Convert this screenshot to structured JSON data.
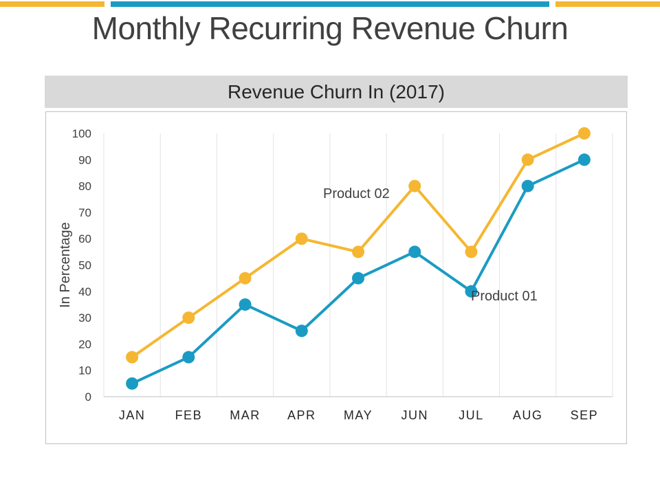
{
  "slide": {
    "title": "Monthly Recurring Revenue Churn",
    "accent_colors": {
      "yellow": "#f5b731",
      "blue": "#1a9bc4"
    }
  },
  "chart_data": {
    "type": "line",
    "title": "Revenue Churn In (2017)",
    "xlabel": "",
    "ylabel": "In Percentage",
    "categories": [
      "JAN",
      "FEB",
      "MAR",
      "APR",
      "MAY",
      "JUN",
      "JUL",
      "AUG",
      "SEP"
    ],
    "ylim": [
      0,
      100
    ],
    "yticks": [
      0,
      10,
      20,
      30,
      40,
      50,
      60,
      70,
      80,
      90,
      100
    ],
    "grid": "vertical",
    "series": [
      {
        "name": "Product 02",
        "color": "#f5b731",
        "values": [
          15,
          30,
          45,
          60,
          55,
          80,
          55,
          90,
          100
        ]
      },
      {
        "name": "Product 01",
        "color": "#1a9bc4",
        "values": [
          5,
          15,
          35,
          25,
          45,
          55,
          40,
          80,
          90
        ]
      }
    ]
  }
}
